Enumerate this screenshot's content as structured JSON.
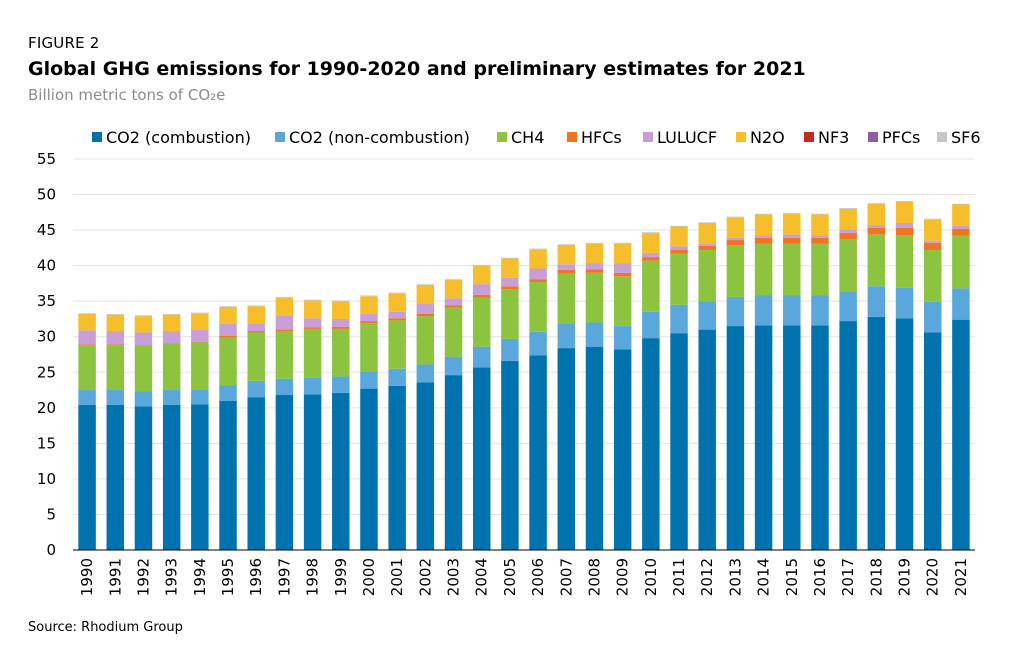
{
  "figure_label": "FIGURE 2",
  "title": "Global GHG emissions for 1990-2020 and preliminary estimates for 2021",
  "subtitle": "Billion metric tons of CO₂e",
  "source": "Source: Rhodium Group",
  "chart_data": {
    "type": "bar",
    "stacked": true,
    "ylim": [
      0,
      55
    ],
    "yticks": [
      0,
      5,
      10,
      15,
      20,
      25,
      30,
      35,
      40,
      45,
      50,
      55
    ],
    "legend_position": "top",
    "grid": true,
    "categories": [
      "1990",
      "1991",
      "1992",
      "1993",
      "1994",
      "1995",
      "1996",
      "1997",
      "1998",
      "1999",
      "2000",
      "2001",
      "2002",
      "2003",
      "2004",
      "2005",
      "2006",
      "2007",
      "2008",
      "2009",
      "2010",
      "2011",
      "2012",
      "2013",
      "2014",
      "2015",
      "2016",
      "2017",
      "2018",
      "2019",
      "2020",
      "2021"
    ],
    "series": [
      {
        "name": "CO2 (combustion)",
        "color": "#0073ae",
        "values": [
          20.4,
          20.4,
          20.2,
          20.4,
          20.5,
          21.0,
          21.5,
          21.8,
          21.9,
          22.1,
          22.7,
          23.1,
          23.6,
          24.6,
          25.7,
          26.6,
          27.4,
          28.4,
          28.6,
          28.2,
          29.8,
          30.5,
          31.0,
          31.5,
          31.6,
          31.6,
          31.6,
          32.2,
          32.8,
          32.6,
          30.6,
          32.4
        ]
      },
      {
        "name": "CO2 (non-combustion)",
        "color": "#5aa7dc",
        "values": [
          2.1,
          2.1,
          2.1,
          2.1,
          2.1,
          2.2,
          2.3,
          2.3,
          2.3,
          2.3,
          2.4,
          2.4,
          2.5,
          2.6,
          2.9,
          3.1,
          3.3,
          3.5,
          3.4,
          3.3,
          3.7,
          4.0,
          4.0,
          4.1,
          4.2,
          4.2,
          4.2,
          4.2,
          4.3,
          4.3,
          4.3,
          4.4
        ]
      },
      {
        "name": "CH4",
        "color": "#8cc43f",
        "values": [
          6.3,
          6.3,
          6.4,
          6.5,
          6.6,
          6.7,
          6.8,
          6.7,
          6.9,
          6.7,
          6.8,
          6.8,
          6.8,
          6.9,
          6.9,
          7.0,
          7.0,
          7.0,
          7.0,
          7.0,
          7.2,
          7.2,
          7.2,
          7.3,
          7.3,
          7.3,
          7.3,
          7.3,
          7.3,
          7.4,
          7.3,
          7.4
        ]
      },
      {
        "name": "HFCs",
        "color": "#f07422",
        "values": [
          0.1,
          0.1,
          0.1,
          0.1,
          0.1,
          0.2,
          0.2,
          0.2,
          0.2,
          0.3,
          0.3,
          0.3,
          0.3,
          0.3,
          0.4,
          0.4,
          0.4,
          0.5,
          0.5,
          0.5,
          0.5,
          0.5,
          0.6,
          0.7,
          0.8,
          0.8,
          0.8,
          0.9,
          0.9,
          1.0,
          1.0,
          1.0
        ]
      },
      {
        "name": "LULUCF",
        "color": "#c79fd6",
        "values": [
          2.0,
          1.9,
          1.8,
          1.7,
          1.7,
          1.7,
          1.1,
          2.0,
          1.3,
          1.1,
          1.0,
          0.9,
          1.5,
          1.0,
          1.5,
          1.2,
          1.5,
          0.8,
          0.8,
          1.3,
          0.6,
          0.5,
          0.3,
          0.3,
          0.4,
          0.5,
          0.4,
          0.5,
          0.4,
          0.7,
          0.3,
          0.4
        ]
      },
      {
        "name": "N2O",
        "color": "#f5be2a",
        "values": [
          2.3,
          2.3,
          2.3,
          2.3,
          2.3,
          2.4,
          2.4,
          2.5,
          2.5,
          2.5,
          2.5,
          2.6,
          2.6,
          2.6,
          2.6,
          2.7,
          2.7,
          2.7,
          2.8,
          2.8,
          2.8,
          2.8,
          2.9,
          2.9,
          2.9,
          2.9,
          2.9,
          2.9,
          3.0,
          3.0,
          3.0,
          3.0
        ]
      },
      {
        "name": "NF3",
        "color": "#c8281e",
        "values": [
          0,
          0,
          0,
          0,
          0,
          0,
          0,
          0,
          0,
          0,
          0,
          0,
          0,
          0,
          0,
          0,
          0,
          0,
          0,
          0,
          0,
          0,
          0,
          0,
          0,
          0,
          0,
          0,
          0,
          0,
          0,
          0
        ]
      },
      {
        "name": "PFCs",
        "color": "#8e5ba8",
        "values": [
          0,
          0,
          0,
          0,
          0,
          0,
          0,
          0,
          0,
          0,
          0,
          0,
          0,
          0,
          0,
          0,
          0,
          0,
          0,
          0,
          0,
          0,
          0,
          0,
          0,
          0,
          0,
          0,
          0,
          0,
          0,
          0
        ]
      },
      {
        "name": "SF6",
        "color": "#c6c6c6",
        "values": [
          0.1,
          0.1,
          0.1,
          0.1,
          0.1,
          0.1,
          0.1,
          0.1,
          0.1,
          0.1,
          0.1,
          0.1,
          0.1,
          0.1,
          0.1,
          0.1,
          0.1,
          0.1,
          0.1,
          0.1,
          0.1,
          0.1,
          0.1,
          0.1,
          0.1,
          0.1,
          0.1,
          0.1,
          0.1,
          0.1,
          0.1,
          0.1
        ]
      }
    ]
  }
}
